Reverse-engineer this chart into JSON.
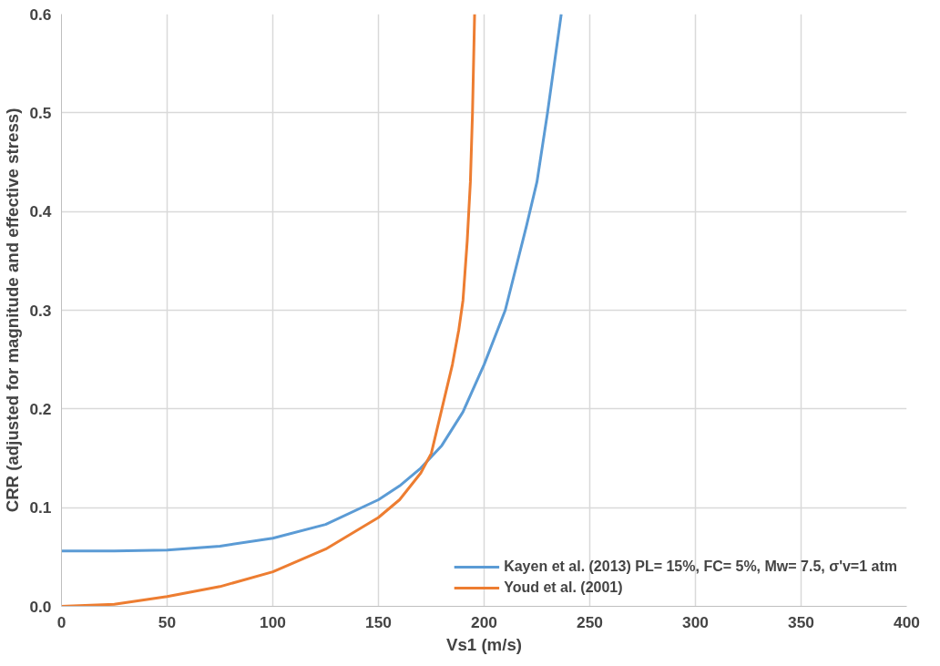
{
  "chart_data": {
    "type": "line",
    "xlabel": "Vs1 (m/s)",
    "ylabel": "CRR (adjusted for magnitude and effective stress)",
    "xlim": [
      0,
      400
    ],
    "xticks": [
      0,
      50,
      100,
      150,
      200,
      250,
      300,
      350,
      400
    ],
    "ylim": [
      0,
      0.6
    ],
    "yticks": [
      {
        "value": 0,
        "label": "0.0"
      },
      0.1,
      0.2,
      0.3,
      0.4,
      0.5,
      0.6
    ],
    "grid": true,
    "legend": "bottom right",
    "marker": "none",
    "line_style": "solid",
    "series": [
      {
        "name": "Kayen et al. (2013) PL= 15%, FC= 5%, Mw= 7.5, σ'v=1 atm",
        "color": "#5b9bd5",
        "x": [
          0,
          25,
          50,
          75,
          100,
          125,
          150,
          160,
          170,
          180,
          190,
          200,
          210,
          220,
          225,
          230,
          236.5
        ],
        "values": [
          0.056,
          0.056,
          0.057,
          0.061,
          0.069,
          0.083,
          0.108,
          0.122,
          0.14,
          0.163,
          0.197,
          0.245,
          0.3,
          0.385,
          0.43,
          0.5,
          0.6
        ]
      },
      {
        "name": "Youd et al. (2001)",
        "color": "#ed7d31",
        "x": [
          0,
          25,
          50,
          75,
          100,
          125,
          150,
          160,
          170,
          175,
          180,
          185,
          188,
          190,
          192,
          193.5,
          194.5,
          195.5
        ],
        "values": [
          0,
          0.002,
          0.01,
          0.02,
          0.035,
          0.058,
          0.09,
          0.108,
          0.135,
          0.155,
          0.2,
          0.245,
          0.28,
          0.31,
          0.37,
          0.43,
          0.5,
          0.6
        ]
      }
    ]
  }
}
